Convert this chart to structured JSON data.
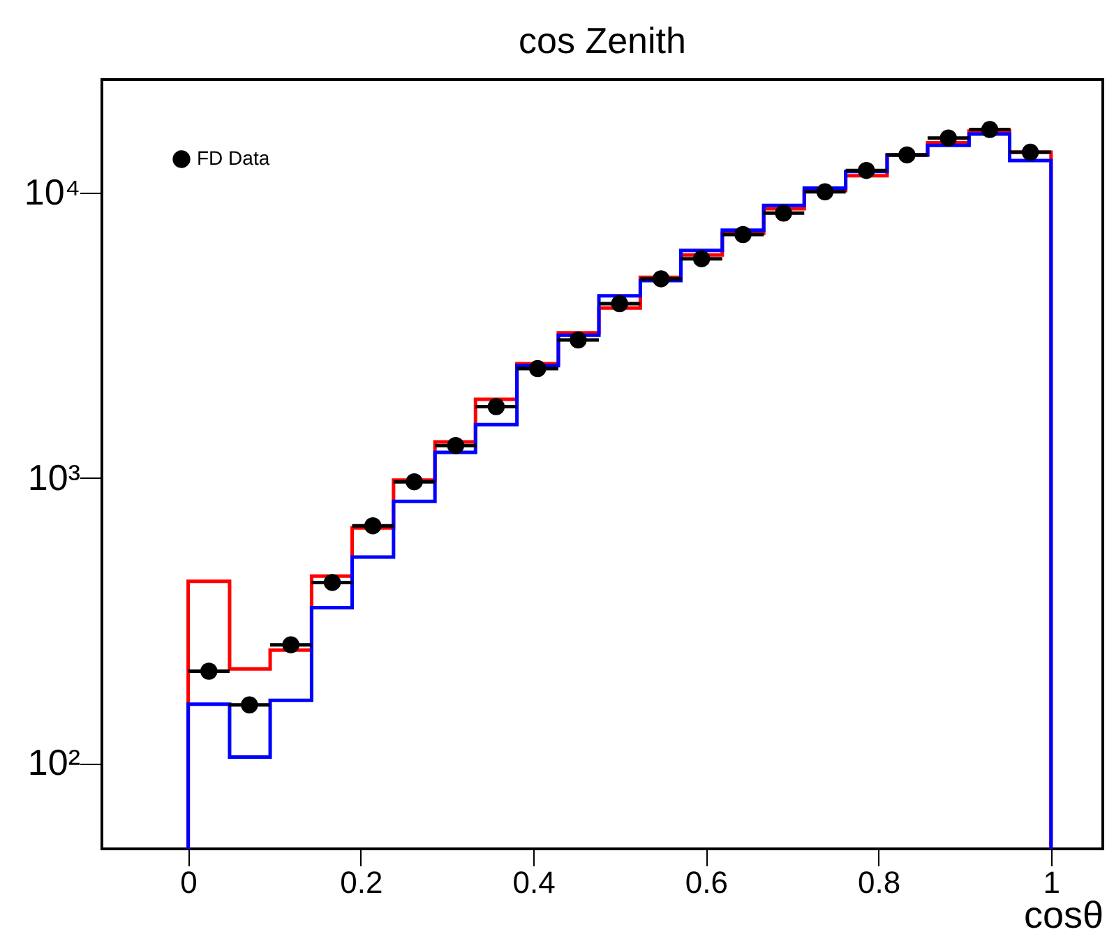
{
  "chart_data": {
    "type": "histogram",
    "title": "cos Zenith",
    "xlabel": "cosθ",
    "bins": [
      0,
      0.048,
      0.095,
      0.143,
      0.19,
      0.238,
      0.286,
      0.333,
      0.381,
      0.429,
      0.476,
      0.524,
      0.571,
      0.619,
      0.667,
      0.714,
      0.762,
      0.81,
      0.857,
      0.905,
      0.952,
      1
    ],
    "series": [
      {
        "name": "FD Data",
        "type": "scatter",
        "color": "#000000",
        "x": [
          0.024,
          0.071,
          0.119,
          0.167,
          0.214,
          0.262,
          0.31,
          0.357,
          0.405,
          0.452,
          0.5,
          0.548,
          0.595,
          0.643,
          0.69,
          0.738,
          0.786,
          0.833,
          0.881,
          0.929,
          0.976
        ],
        "values": [
          210,
          160,
          260,
          430,
          680,
          970,
          1300,
          1780,
          2420,
          3050,
          4090,
          5000,
          5880,
          7150,
          8500,
          10100,
          12000,
          13600,
          15600,
          16700,
          13900
        ],
        "xerrors": [
          0.024,
          0.024,
          0.024,
          0.024,
          0.024,
          0.024,
          0.024,
          0.024,
          0.024,
          0.024,
          0.024,
          0.024,
          0.024,
          0.024,
          0.024,
          0.024,
          0.024,
          0.024,
          0.024,
          0.024,
          0.024
        ]
      },
      {
        "color": "#ff0000",
        "values": [
          434,
          214,
          249,
          453,
          668,
          984,
          1340,
          1890,
          2520,
          3230,
          3950,
          5060,
          6060,
          7220,
          8810,
          10200,
          11500,
          13600,
          15000,
          16500,
          13900
        ]
      },
      {
        "color": "#0000ff",
        "values": [
          161,
          105,
          166,
          351,
          528,
          828,
          1230,
          1540,
          2480,
          3170,
          4360,
          4930,
          6290,
          7410,
          9050,
          10400,
          11900,
          13600,
          14700,
          16100,
          13000
        ]
      }
    ],
    "xlim": [
      -0.1,
      1.06
    ],
    "xticks": [
      0,
      0.2,
      0.4,
      0.6,
      0.8,
      1
    ],
    "ylim": [
      50,
      25000
    ],
    "yticks": [
      {
        "value": 100,
        "label": "10²"
      },
      {
        "value": 1000,
        "label": "10³"
      },
      {
        "value": 10000,
        "label": "10⁴"
      }
    ],
    "log": "y",
    "marker": "circle",
    "legend": "top left"
  }
}
